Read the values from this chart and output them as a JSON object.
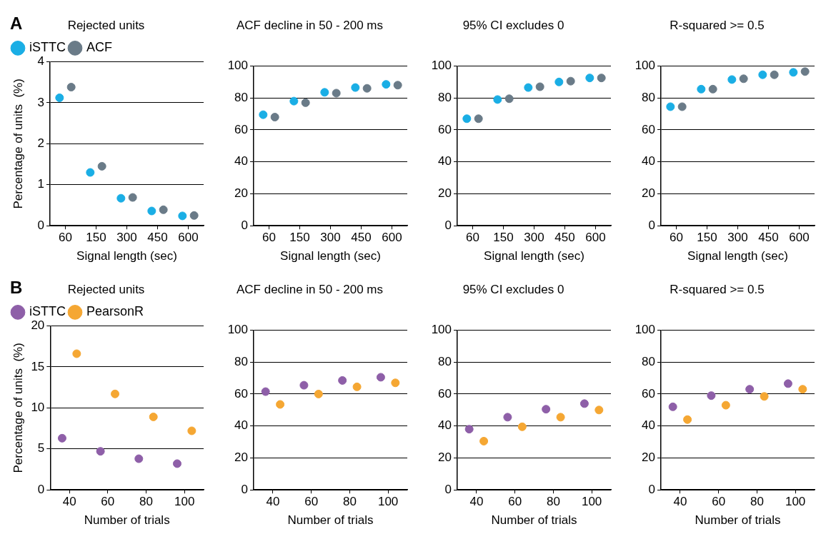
{
  "chart_data": [
    {
      "type": "scatter",
      "title": "Rejected units",
      "xlabel": "Signal length (sec)",
      "ylabel": "Percentage of units  (%)",
      "annotations": [
        "A"
      ],
      "categories": [
        "60",
        "150",
        "300",
        "450",
        "600"
      ],
      "series": [
        {
          "name": "iSTTC",
          "color": "#1aaee5",
          "values": [
            3.12,
            1.3,
            0.67,
            0.36,
            0.24
          ]
        },
        {
          "name": "ACF",
          "color": "#6a7b88",
          "values": [
            3.38,
            1.45,
            0.69,
            0.39,
            0.25
          ]
        }
      ],
      "ylim": [
        0,
        4
      ],
      "yticks": [
        0,
        1,
        2,
        3,
        4
      ],
      "grid": "y",
      "legend": "top left",
      "marker": "circle"
    },
    {
      "type": "scatter",
      "title": "ACF decline in 50 - 200 ms",
      "xlabel": "Signal length (sec)",
      "categories": [
        "60",
        "150",
        "300",
        "450",
        "600"
      ],
      "series": [
        {
          "color": "#1aaee5",
          "values": [
            69.5,
            78,
            83.5,
            86.5,
            88.5
          ]
        },
        {
          "color": "#6a7b88",
          "values": [
            68,
            77,
            83,
            86,
            88
          ]
        }
      ],
      "ylim": [
        0,
        100
      ],
      "yticks": [
        0,
        20,
        40,
        60,
        80,
        100
      ],
      "grid": "y",
      "marker": "circle"
    },
    {
      "type": "scatter",
      "title": "95% CI excludes 0",
      "xlabel": "Signal length (sec)",
      "categories": [
        "60",
        "150",
        "300",
        "450",
        "600"
      ],
      "series": [
        {
          "color": "#1aaee5",
          "values": [
            67,
            79,
            86.5,
            90,
            92.5
          ]
        },
        {
          "color": "#6a7b88",
          "values": [
            67,
            79.5,
            87,
            90.5,
            92.5
          ]
        }
      ],
      "ylim": [
        0,
        100
      ],
      "yticks": [
        0,
        20,
        40,
        60,
        80,
        100
      ],
      "grid": "y",
      "marker": "circle"
    },
    {
      "type": "scatter",
      "title": "R-squared >= 0.5",
      "xlabel": "Signal length (sec)",
      "categories": [
        "60",
        "150",
        "300",
        "450",
        "600"
      ],
      "series": [
        {
          "color": "#1aaee5",
          "values": [
            74.5,
            85.5,
            91.5,
            94.5,
            96
          ]
        },
        {
          "color": "#6a7b88",
          "values": [
            74.5,
            85.5,
            92,
            94.5,
            96.5
          ]
        }
      ],
      "ylim": [
        0,
        100
      ],
      "yticks": [
        0,
        20,
        40,
        60,
        80,
        100
      ],
      "grid": "y",
      "marker": "circle"
    },
    {
      "type": "scatter",
      "title": "Rejected units",
      "xlabel": "Number of trials",
      "ylabel": "Percentage of units  (%)",
      "annotations": [
        "B"
      ],
      "categories": [
        "40",
        "60",
        "80",
        "100"
      ],
      "series": [
        {
          "name": "iSTTC",
          "color": "#8e5fa8",
          "values": [
            6.3,
            4.7,
            3.8,
            3.2
          ]
        },
        {
          "name": "PearsonR",
          "color": "#f5a733",
          "values": [
            16.6,
            11.7,
            8.9,
            7.2
          ]
        }
      ],
      "ylim": [
        0,
        20
      ],
      "yticks": [
        0,
        5,
        10,
        15,
        20
      ],
      "grid": "y",
      "legend": "top left",
      "marker": "circle"
    },
    {
      "type": "scatter",
      "title": "ACF decline in 50 - 200 ms",
      "xlabel": "Number of trials",
      "categories": [
        "40",
        "60",
        "80",
        "100"
      ],
      "series": [
        {
          "color": "#8e5fa8",
          "values": [
            61.5,
            65.5,
            68.5,
            70.5
          ]
        },
        {
          "color": "#f5a733",
          "values": [
            53.5,
            60,
            64.5,
            67
          ]
        }
      ],
      "ylim": [
        0,
        100
      ],
      "yticks": [
        0,
        20,
        40,
        60,
        80,
        100
      ],
      "grid": "y",
      "marker": "circle"
    },
    {
      "type": "scatter",
      "title": "95% CI excludes 0",
      "xlabel": "Number of trials",
      "categories": [
        "40",
        "60",
        "80",
        "100"
      ],
      "series": [
        {
          "color": "#8e5fa8",
          "values": [
            38,
            45.5,
            50.5,
            54
          ]
        },
        {
          "color": "#f5a733",
          "values": [
            30.5,
            39.5,
            45.5,
            50
          ]
        }
      ],
      "ylim": [
        0,
        100
      ],
      "yticks": [
        0,
        20,
        40,
        60,
        80,
        100
      ],
      "grid": "y",
      "marker": "circle"
    },
    {
      "type": "scatter",
      "title": "R-squared >= 0.5",
      "xlabel": "Number of trials",
      "categories": [
        "40",
        "60",
        "80",
        "100"
      ],
      "series": [
        {
          "color": "#8e5fa8",
          "values": [
            52,
            59,
            63,
            66.5
          ]
        },
        {
          "color": "#f5a733",
          "values": [
            44,
            53,
            58.5,
            63
          ]
        }
      ],
      "ylim": [
        0,
        100
      ],
      "yticks": [
        0,
        20,
        40,
        60,
        80,
        100
      ],
      "grid": "y",
      "marker": "circle"
    }
  ]
}
